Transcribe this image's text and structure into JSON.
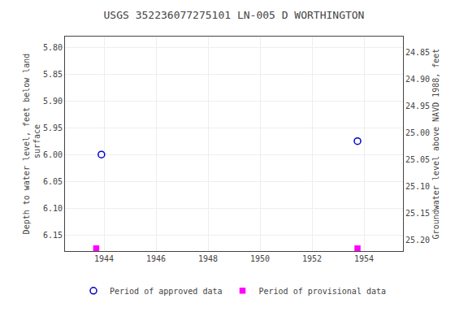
{
  "chart_data": {
    "type": "scatter",
    "title": "USGS 352236077275101 LN-005 D WORTHINGTON",
    "y_label": "Depth to water level, feet below land\n surface",
    "y2_label": "Groundwater level above NAVD 1988, feet",
    "xlim": [
      1942.5,
      1955.5
    ],
    "xticks": [
      1944,
      1946,
      1948,
      1950,
      1952,
      1954
    ],
    "ylim": [
      6.18,
      5.78
    ],
    "yticks": [
      {
        "value": 5.8,
        "label": "5.80"
      },
      5.85,
      {
        "value": 5.9,
        "label": "5.90"
      },
      5.95,
      {
        "value": 6.0,
        "label": "6.00"
      },
      6.05,
      {
        "value": 6.1,
        "label": "6.10"
      },
      6.15
    ],
    "y2lim": [
      25.22,
      24.82
    ],
    "y2ticks": [
      {
        "value": 25.2,
        "label": "25.20"
      },
      25.15,
      {
        "value": 25.1,
        "label": "25.10"
      },
      25.05,
      {
        "value": 25.0,
        "label": "25.00"
      },
      24.95,
      {
        "value": 24.9,
        "label": "24.90"
      },
      24.85
    ],
    "series": [
      {
        "name": "Period of approved data",
        "color": "#0000cc",
        "marker": "circle-open",
        "x": [
          1943.9,
          1953.75
        ],
        "values": [
          6.0,
          5.975
        ]
      },
      {
        "name": "Period of provisional data",
        "color": "#ff00ff",
        "marker": "square",
        "x": [
          1943.7,
          1953.75
        ],
        "values": [
          6.175,
          6.175
        ]
      }
    ],
    "grid": true,
    "legend": "bottom"
  }
}
